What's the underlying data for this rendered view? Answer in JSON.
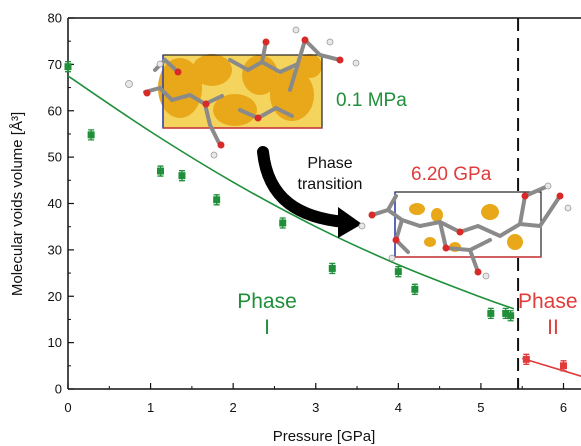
{
  "chart_data": {
    "type": "scatter",
    "xlabel": "Pressure [GPa]",
    "ylabel": "Molecular voids volume [Å³]",
    "xlim": [
      0,
      6.3
    ],
    "ylim": [
      0,
      80
    ],
    "x_ticks": [
      "0",
      "1",
      "2",
      "3",
      "4",
      "5",
      "6"
    ],
    "y_ticks": [
      "0",
      "10",
      "20",
      "30",
      "40",
      "50",
      "60",
      "70",
      "80"
    ],
    "grid": false,
    "legend": "none",
    "series": [
      {
        "color": "#1f8f3a",
        "points": [
          {
            "x": 0.0,
            "y": 69.5
          },
          {
            "x": 0.28,
            "y": 54.8
          },
          {
            "x": 1.12,
            "y": 47.0
          },
          {
            "x": 1.38,
            "y": 46.0
          },
          {
            "x": 1.8,
            "y": 40.8
          },
          {
            "x": 2.6,
            "y": 35.8
          },
          {
            "x": 3.2,
            "y": 26.0
          },
          {
            "x": 4.0,
            "y": 25.3
          },
          {
            "x": 4.2,
            "y": 21.5
          },
          {
            "x": 5.12,
            "y": 16.3
          },
          {
            "x": 5.3,
            "y": 16.3
          },
          {
            "x": 5.36,
            "y": 15.8
          }
        ],
        "fit": [
          [
            0.0,
            67.5
          ],
          [
            1.0,
            55.5
          ],
          [
            2.0,
            44.6
          ],
          [
            3.0,
            35.0
          ],
          [
            4.0,
            26.8
          ],
          [
            5.0,
            19.8
          ],
          [
            5.4,
            17.3
          ]
        ]
      },
      {
        "color": "#e03c3c",
        "points": [
          {
            "x": 5.55,
            "y": 6.4
          },
          {
            "x": 6.0,
            "y": 5.0
          },
          {
            "x": 6.3,
            "y": 2.3
          }
        ],
        "fit": [
          [
            5.5,
            6.6
          ],
          [
            6.3,
            2.3
          ]
        ]
      }
    ],
    "transition_pressure": 5.45,
    "annotations": {
      "phase_i_line1": "Phase",
      "phase_i_line2": "I",
      "phase_ii_line1": "Phase",
      "phase_ii_line2": "II",
      "label_low": "0.1 MPa",
      "label_high": "6.20 GPa",
      "arrow_line1": "Phase",
      "arrow_line2": "transition"
    }
  },
  "colors": {
    "phase_i": "#1f8f3a",
    "phase_ii": "#e03c3c",
    "void": "#e8a81a",
    "axis": "#111111"
  }
}
